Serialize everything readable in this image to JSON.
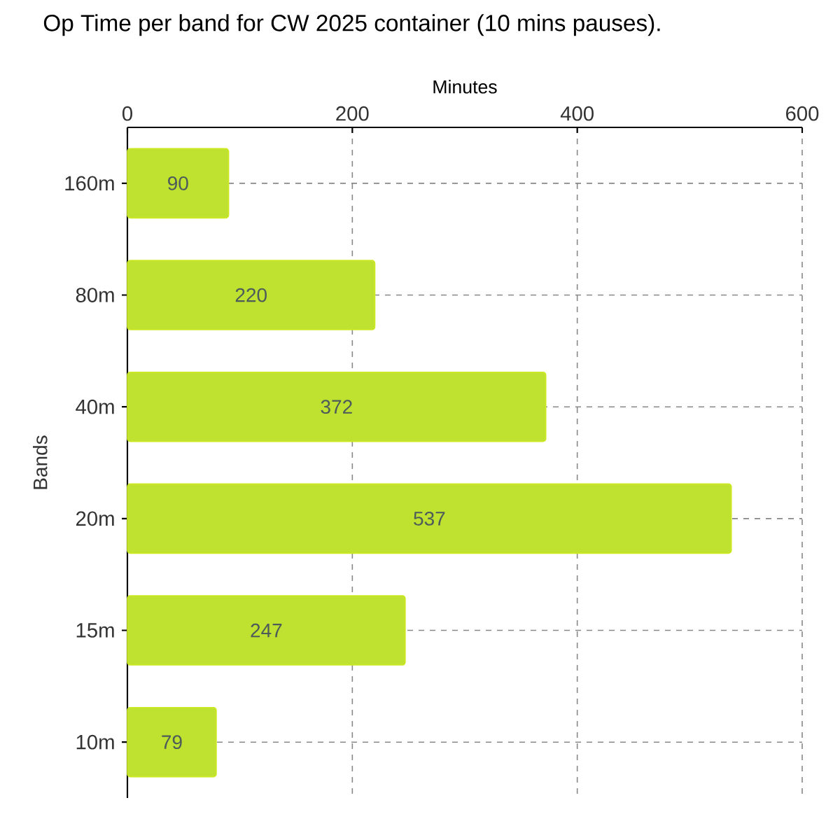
{
  "chart_data": {
    "type": "bar",
    "orientation": "horizontal",
    "title": "Op Time per band for CW 2025 container (10 mins pauses).",
    "xlabel": "Minutes",
    "ylabel": "Bands",
    "categories": [
      "160m",
      "80m",
      "40m",
      "20m",
      "15m",
      "10m"
    ],
    "values": [
      90,
      220,
      372,
      537,
      247,
      79
    ],
    "color": "#bee22f",
    "xlim": [
      0,
      600
    ],
    "xticks": [
      0,
      200,
      400,
      600
    ],
    "grid": true,
    "data_labels": true
  }
}
